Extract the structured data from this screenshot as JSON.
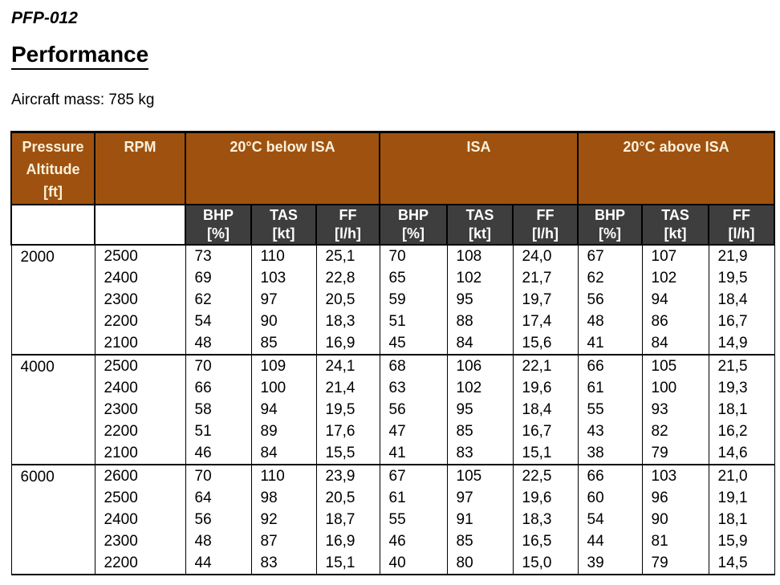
{
  "page": {
    "doc_code": "PFP-012",
    "heading": "Performance",
    "aircraft_mass": "Aircraft mass: 785 kg"
  },
  "colors": {
    "header_bg": "#9F520F",
    "header_text": "#FBF1DC",
    "subheader_bg": "#3F3E3E",
    "subheader_text": "#FFFFFF",
    "border": "#000000"
  },
  "table": {
    "columns": {
      "pressure_altitude": "Pressure\nAltitude\n[ft]",
      "rpm": "RPM",
      "groups": [
        "20°C below ISA",
        "ISA",
        "20°C above ISA"
      ],
      "sub": [
        "BHP\n[%]",
        "TAS\n[kt]",
        "FF\n[l/h]"
      ]
    },
    "blocks": [
      {
        "altitude": "2000",
        "rows": [
          {
            "rpm": "2500",
            "values": [
              "73",
              "110",
              "25,1",
              "70",
              "108",
              "24,0",
              "67",
              "107",
              "21,9"
            ]
          },
          {
            "rpm": "2400",
            "values": [
              "69",
              "103",
              "22,8",
              "65",
              "102",
              "21,7",
              "62",
              "102",
              "19,5"
            ]
          },
          {
            "rpm": "2300",
            "values": [
              "62",
              "97",
              "20,5",
              "59",
              "95",
              "19,7",
              "56",
              "94",
              "18,4"
            ]
          },
          {
            "rpm": "2200",
            "values": [
              "54",
              "90",
              "18,3",
              "51",
              "88",
              "17,4",
              "48",
              "86",
              "16,7"
            ]
          },
          {
            "rpm": "2100",
            "values": [
              "48",
              "85",
              "16,9",
              "45",
              "84",
              "15,6",
              "41",
              "84",
              "14,9"
            ]
          }
        ]
      },
      {
        "altitude": "4000",
        "rows": [
          {
            "rpm": "2500",
            "values": [
              "70",
              "109",
              "24,1",
              "68",
              "106",
              "22,1",
              "66",
              "105",
              "21,5"
            ]
          },
          {
            "rpm": "2400",
            "values": [
              "66",
              "100",
              "21,4",
              "63",
              "102",
              "19,6",
              "61",
              "100",
              "19,3"
            ]
          },
          {
            "rpm": "2300",
            "values": [
              "58",
              "94",
              "19,5",
              "56",
              "95",
              "18,4",
              "55",
              "93",
              "18,1"
            ]
          },
          {
            "rpm": "2200",
            "values": [
              "51",
              "89",
              "17,6",
              "47",
              "85",
              "16,7",
              "43",
              "82",
              "16,2"
            ]
          },
          {
            "rpm": "2100",
            "values": [
              "46",
              "84",
              "15,5",
              "41",
              "83",
              "15,1",
              "38",
              "79",
              "14,6"
            ]
          }
        ]
      },
      {
        "altitude": "6000",
        "rows": [
          {
            "rpm": "2600",
            "values": [
              "70",
              "110",
              "23,9",
              "67",
              "105",
              "22,5",
              "66",
              "103",
              "21,0"
            ]
          },
          {
            "rpm": "2500",
            "values": [
              "64",
              "98",
              "20,5",
              "61",
              "97",
              "19,6",
              "60",
              "96",
              "19,1"
            ]
          },
          {
            "rpm": "2400",
            "values": [
              "56",
              "92",
              "18,7",
              "55",
              "91",
              "18,3",
              "54",
              "90",
              "18,1"
            ]
          },
          {
            "rpm": "2300",
            "values": [
              "48",
              "87",
              "16,9",
              "46",
              "85",
              "16,5",
              "44",
              "81",
              "15,9"
            ]
          },
          {
            "rpm": "2200",
            "values": [
              "44",
              "83",
              "15,1",
              "40",
              "80",
              "15,0",
              "39",
              "79",
              "14,5"
            ]
          }
        ]
      }
    ]
  }
}
